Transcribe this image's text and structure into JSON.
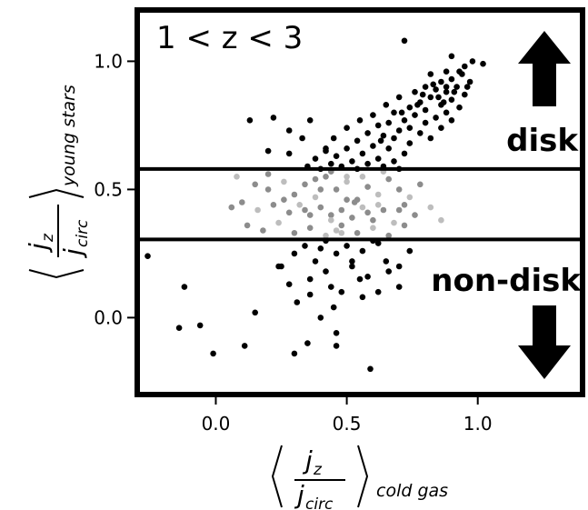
{
  "chart_data": {
    "type": "scatter",
    "title": "",
    "annotation_redshift": "1 < z < 3",
    "annotation_disk": "disk",
    "annotation_nondisk": "non-disk",
    "xlabel": {
      "num": "j",
      "num_sub": "z",
      "den": "j",
      "den_sub": "circ",
      "suffix": "cold gas"
    },
    "ylabel": {
      "num": "j",
      "num_sub": "z",
      "den": "j",
      "den_sub": "circ",
      "suffix": "young stars"
    },
    "xlim": [
      -0.3,
      1.4
    ],
    "ylim": [
      -0.3,
      1.2
    ],
    "xticks": [
      "0.0",
      "0.5",
      "1.0"
    ],
    "xtick_values": [
      0.0,
      0.5,
      1.0
    ],
    "yticks": [
      "0.0",
      "0.5",
      "1.0"
    ],
    "ytick_values": [
      0.0,
      0.5,
      1.0
    ],
    "threshold_lines": [
      0.58,
      0.305
    ],
    "arrows": [
      "up",
      "down"
    ],
    "colors": {
      "disk": "#000000",
      "mid": "#8c8c8c",
      "mid_light": "#bdbdbd"
    },
    "series": [
      {
        "points": [
          [
            0.72,
            1.08
          ],
          [
            0.9,
            1.02
          ],
          [
            0.98,
            1.0
          ],
          [
            0.95,
            0.98
          ],
          [
            0.88,
            0.96
          ],
          [
            0.94,
            0.95
          ],
          [
            0.82,
            0.95
          ],
          [
            0.9,
            0.93
          ],
          [
            0.86,
            0.92
          ],
          [
            0.97,
            0.92
          ],
          [
            0.8,
            0.9
          ],
          [
            0.92,
            0.9
          ],
          [
            0.84,
            0.89
          ],
          [
            0.76,
            0.88
          ],
          [
            0.88,
            0.88
          ],
          [
            0.95,
            0.87
          ],
          [
            0.7,
            0.86
          ],
          [
            0.82,
            0.86
          ],
          [
            0.9,
            0.85
          ],
          [
            0.78,
            0.84
          ],
          [
            0.86,
            0.83
          ],
          [
            0.65,
            0.83
          ],
          [
            0.93,
            0.82
          ],
          [
            0.74,
            0.82
          ],
          [
            0.8,
            0.81
          ],
          [
            0.68,
            0.8
          ],
          [
            0.88,
            0.8
          ],
          [
            0.6,
            0.79
          ],
          [
            0.76,
            0.79
          ],
          [
            0.84,
            0.78
          ],
          [
            0.72,
            0.77
          ],
          [
            0.55,
            0.77
          ],
          [
            0.9,
            0.77
          ],
          [
            0.66,
            0.76
          ],
          [
            0.8,
            0.76
          ],
          [
            0.62,
            0.75
          ],
          [
            0.74,
            0.74
          ],
          [
            0.5,
            0.74
          ],
          [
            0.86,
            0.74
          ],
          [
            0.7,
            0.73
          ],
          [
            0.58,
            0.72
          ],
          [
            0.78,
            0.72
          ],
          [
            0.64,
            0.71
          ],
          [
            0.82,
            0.7
          ],
          [
            0.45,
            0.7
          ],
          [
            0.68,
            0.7
          ],
          [
            0.54,
            0.69
          ],
          [
            0.74,
            0.68
          ],
          [
            0.6,
            0.67
          ],
          [
            0.5,
            0.66
          ],
          [
            0.66,
            0.66
          ],
          [
            0.42,
            0.65
          ],
          [
            0.56,
            0.64
          ],
          [
            0.72,
            0.64
          ],
          [
            0.46,
            0.63
          ],
          [
            0.62,
            0.62
          ],
          [
            0.38,
            0.62
          ],
          [
            0.52,
            0.61
          ],
          [
            0.68,
            0.61
          ],
          [
            0.44,
            0.6
          ],
          [
            0.58,
            0.6
          ],
          [
            0.35,
            0.59
          ],
          [
            0.48,
            0.59
          ],
          [
            0.64,
            0.59
          ],
          [
            0.4,
            0.58
          ],
          [
            0.54,
            0.58
          ],
          [
            0.7,
            0.58
          ],
          [
            0.88,
            0.9
          ],
          [
            0.91,
            0.88
          ],
          [
            0.85,
            0.86
          ],
          [
            0.79,
            0.87
          ],
          [
            0.83,
            0.91
          ],
          [
            0.93,
            0.96
          ],
          [
            0.96,
            0.9
          ],
          [
            0.77,
            0.83
          ],
          [
            0.71,
            0.8
          ],
          [
            0.87,
            0.84
          ],
          [
            0.13,
            0.77
          ],
          [
            0.22,
            0.78
          ],
          [
            0.36,
            0.77
          ],
          [
            0.28,
            0.73
          ],
          [
            0.33,
            0.7
          ],
          [
            0.2,
            0.65
          ],
          [
            0.28,
            0.64
          ],
          [
            0.42,
            0.66
          ],
          [
            1.02,
            0.99
          ],
          [
            0.63,
            0.69
          ],
          [
            0.5,
            0.55
          ],
          [
            0.53,
            0.45
          ],
          [
            0.44,
            0.4
          ],
          [
            0.48,
            0.33
          ],
          [
            0.6,
            0.3
          ],
          [
            0.56,
            0.26
          ],
          [
            0.65,
            0.22
          ],
          [
            0.7,
            0.2
          ],
          [
            0.52,
            0.2
          ],
          [
            0.46,
            0.25
          ],
          [
            0.42,
            0.18
          ],
          [
            0.38,
            0.22
          ],
          [
            0.36,
            0.15
          ],
          [
            0.28,
            0.13
          ],
          [
            0.25,
            0.2
          ],
          [
            0.3,
            0.25
          ],
          [
            0.55,
            0.15
          ],
          [
            0.62,
            0.1
          ],
          [
            0.48,
            0.1
          ],
          [
            0.45,
            0.04
          ],
          [
            0.4,
            0.0
          ],
          [
            0.46,
            -0.06
          ],
          [
            0.35,
            -0.1
          ],
          [
            0.3,
            -0.14
          ],
          [
            0.15,
            0.02
          ],
          [
            -0.12,
            0.12
          ],
          [
            -0.26,
            0.24
          ],
          [
            -0.14,
            -0.04
          ],
          [
            -0.06,
            -0.03
          ],
          [
            -0.01,
            -0.14
          ],
          [
            0.11,
            -0.11
          ],
          [
            0.59,
            -0.2
          ],
          [
            0.46,
            -0.11
          ],
          [
            0.24,
            0.2
          ],
          [
            0.52,
            0.22
          ],
          [
            0.74,
            0.26
          ],
          [
            0.66,
            0.18
          ],
          [
            0.58,
            0.16
          ],
          [
            0.42,
            0.3
          ],
          [
            0.5,
            0.28
          ],
          [
            0.34,
            0.28
          ],
          [
            0.44,
            0.12
          ],
          [
            0.56,
            0.08
          ],
          [
            0.36,
            0.09
          ],
          [
            0.7,
            0.12
          ],
          [
            0.62,
            0.29
          ],
          [
            0.4,
            0.27
          ],
          [
            0.31,
            0.06
          ]
        ]
      },
      {
        "points": [
          [
            0.08,
            0.55
          ],
          [
            0.15,
            0.52
          ],
          [
            0.2,
            0.5
          ],
          [
            0.26,
            0.53
          ],
          [
            0.3,
            0.48
          ],
          [
            0.34,
            0.52
          ],
          [
            0.38,
            0.47
          ],
          [
            0.42,
            0.55
          ],
          [
            0.46,
            0.5
          ],
          [
            0.5,
            0.53
          ],
          [
            0.54,
            0.46
          ],
          [
            0.58,
            0.51
          ],
          [
            0.62,
            0.48
          ],
          [
            0.66,
            0.54
          ],
          [
            0.7,
            0.5
          ],
          [
            0.74,
            0.47
          ],
          [
            0.78,
            0.52
          ],
          [
            0.1,
            0.45
          ],
          [
            0.16,
            0.42
          ],
          [
            0.22,
            0.44
          ],
          [
            0.28,
            0.41
          ],
          [
            0.32,
            0.44
          ],
          [
            0.36,
            0.4
          ],
          [
            0.4,
            0.43
          ],
          [
            0.44,
            0.38
          ],
          [
            0.48,
            0.42
          ],
          [
            0.52,
            0.39
          ],
          [
            0.56,
            0.43
          ],
          [
            0.6,
            0.38
          ],
          [
            0.64,
            0.42
          ],
          [
            0.68,
            0.37
          ],
          [
            0.72,
            0.44
          ],
          [
            0.76,
            0.4
          ],
          [
            0.82,
            0.43
          ],
          [
            0.12,
            0.36
          ],
          [
            0.18,
            0.34
          ],
          [
            0.24,
            0.37
          ],
          [
            0.3,
            0.33
          ],
          [
            0.36,
            0.35
          ],
          [
            0.42,
            0.32
          ],
          [
            0.48,
            0.36
          ],
          [
            0.54,
            0.33
          ],
          [
            0.6,
            0.35
          ],
          [
            0.66,
            0.32
          ],
          [
            0.72,
            0.36
          ],
          [
            0.86,
            0.38
          ],
          [
            0.2,
            0.56
          ],
          [
            0.44,
            0.57
          ],
          [
            0.64,
            0.57
          ],
          [
            0.06,
            0.43
          ],
          [
            0.4,
            0.5
          ],
          [
            0.56,
            0.55
          ],
          [
            0.34,
            0.42
          ],
          [
            0.5,
            0.46
          ],
          [
            0.62,
            0.44
          ],
          [
            0.26,
            0.46
          ],
          [
            0.7,
            0.42
          ],
          [
            0.46,
            0.34
          ],
          [
            0.58,
            0.41
          ],
          [
            0.38,
            0.54
          ]
        ]
      }
    ]
  }
}
